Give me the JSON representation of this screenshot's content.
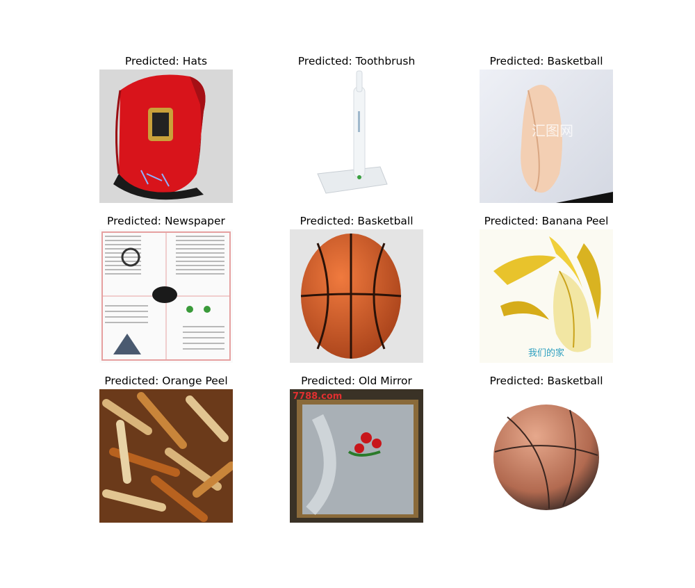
{
  "figure": {
    "cells": [
      {
        "caption": "Predicted: Hats",
        "image": "red-cap-photo"
      },
      {
        "caption": "Predicted: Toothbrush",
        "image": "electric-toothbrush-photo"
      },
      {
        "caption": "Predicted: Basketball",
        "image": "eggshell-photo"
      },
      {
        "caption": "Predicted: Newspaper",
        "image": "newspaper-photo"
      },
      {
        "caption": "Predicted: Basketball",
        "image": "basketball-photo"
      },
      {
        "caption": "Predicted: Banana Peel",
        "image": "banana-peel-photo"
      },
      {
        "caption": "Predicted: Orange Peel",
        "image": "orange-peel-photo"
      },
      {
        "caption": "Predicted: Old Mirror",
        "image": "old-mirror-photo"
      },
      {
        "caption": "Predicted: Basketball",
        "image": "basketball-sphere-photo"
      }
    ],
    "watermarks": {
      "eggshell": "汇图网",
      "banana": "我们的家",
      "mirror": "7788.com"
    }
  }
}
